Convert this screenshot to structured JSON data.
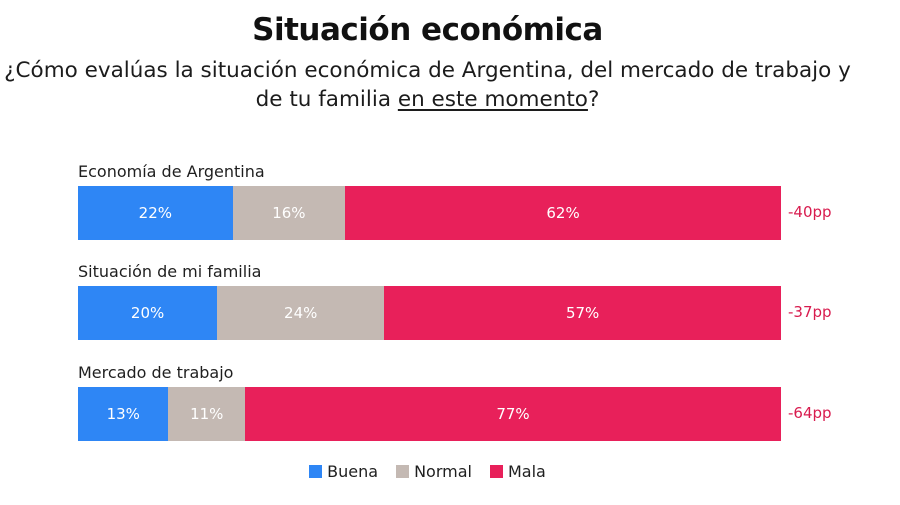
{
  "chart_data": {
    "type": "bar",
    "orientation": "horizontal",
    "stacked": true,
    "title": "Situación económica",
    "subtitle_parts": [
      "¿Cómo evalúas la situación económica de Argentina, del mercado de trabajo y de tu familia ",
      "en este momento",
      "?"
    ],
    "categories": [
      "Economía de Argentina",
      "Situación de mi familia",
      "Mercado de trabajo"
    ],
    "series": [
      {
        "name": "Buena",
        "color": "#2e86f5",
        "values": [
          22,
          20,
          13
        ],
        "labels": [
          "22%",
          "20%",
          "13%"
        ]
      },
      {
        "name": "Normal",
        "color": "#c4b9b3",
        "values": [
          16,
          24,
          11
        ],
        "labels": [
          "16%",
          "24%",
          "11%"
        ]
      },
      {
        "name": "Mala",
        "color": "#e8205a",
        "values": [
          62,
          57,
          77
        ],
        "labels": [
          "62%",
          "57%",
          "77%"
        ]
      }
    ],
    "net_labels": [
      "-40pp",
      "-37pp",
      "-64pp"
    ],
    "net_color": "#d81b4e",
    "xlim": [
      0,
      100
    ],
    "grid": false,
    "legend_position": "bottom-center"
  }
}
